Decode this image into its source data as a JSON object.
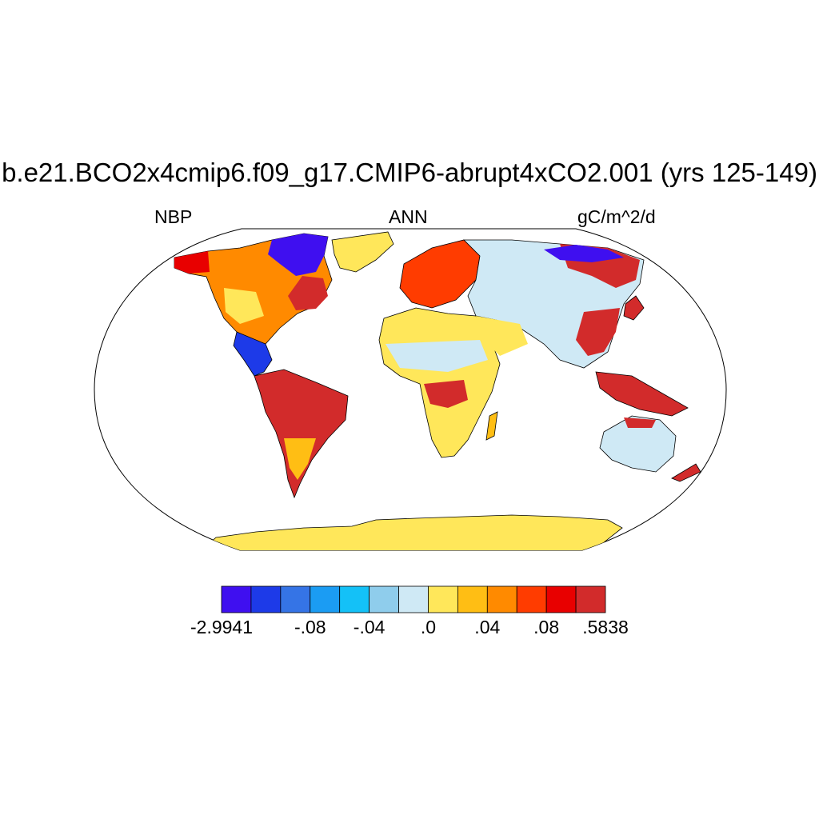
{
  "title": "b.e21.BCO2x4cmip6.f09_g17.CMIP6-abrupt4xCO2.001 (yrs 125-149)",
  "left_label": "NBP",
  "center_label": "ANN",
  "right_label": "gC/m^2/d",
  "colors": {
    "ocean": "#ffffff",
    "coast": "#000000"
  },
  "colorbar": {
    "colors": [
      "#3f0ff0",
      "#1d3ae8",
      "#3574e6",
      "#1b9cf3",
      "#14c1f7",
      "#8fcdec",
      "#cfe9f5",
      "#ffe75a",
      "#ffbe14",
      "#ff8a00",
      "#ff3c00",
      "#e80000",
      "#d22b2b"
    ],
    "tick_labels": [
      "-2.9941",
      "-.08",
      "-.04",
      ".0",
      ".04",
      ".08",
      ".5838"
    ]
  },
  "chart_data": {
    "type": "heatmap",
    "variable": "NBP",
    "season": "ANN",
    "units": "gC/m^2/d",
    "range": [
      -2.9941,
      0.5838
    ],
    "levels": [
      -0.08,
      -0.04,
      0.0,
      0.04,
      0.08
    ]
  }
}
